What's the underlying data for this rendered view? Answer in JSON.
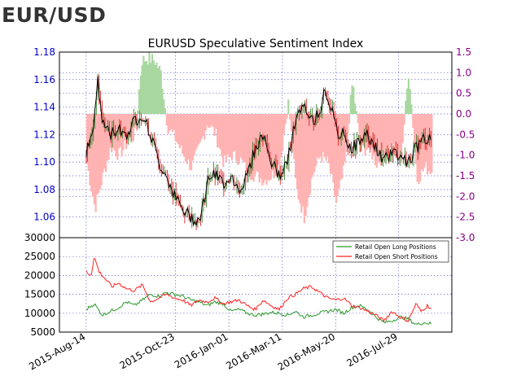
{
  "header": {
    "title": "EUR/USD"
  },
  "colors": {
    "price": "#000000",
    "long_candle_up": "#2a7a1a",
    "short_candle": "#d81010",
    "sentiment_positive": "#a8d8a0",
    "sentiment_negative": "#ffb3b3",
    "long_positions": "#2a9a2a",
    "short_positions": "#ff2020",
    "left_axis": "#0000cc",
    "right_axis": "#880088",
    "grid": "#6666cc"
  },
  "chart_data": [
    {
      "type": "line",
      "title": "EURUSD Speculative Sentiment Index",
      "x_tick_labels": [
        "2015-Aug-14",
        "2015-Oct-23",
        "2016-Jan-01",
        "2016-Mar-11",
        "2016-May-20",
        "2016-Jul-29"
      ],
      "left_axis": {
        "ylim": [
          1.045,
          1.18
        ],
        "ticks": [
          "1.18",
          "1.16",
          "1.14",
          "1.12",
          "1.10",
          "1.08",
          "1.06"
        ],
        "tick_values": [
          1.18,
          1.16,
          1.14,
          1.12,
          1.1,
          1.08,
          1.06
        ]
      },
      "right_axis": {
        "ylim": [
          -3.0,
          1.5
        ],
        "ticks": [
          "1.5",
          "1.0",
          "0.5",
          "0.0",
          "-0.5",
          "-1.0",
          "-1.5",
          "-2.0",
          "-2.5",
          "-3.0"
        ],
        "tick_values": [
          1.5,
          1.0,
          0.5,
          0.0,
          -0.5,
          -1.0,
          -1.5,
          -2.0,
          -2.5,
          -3.0
        ]
      },
      "grid": true,
      "price_keypoints": [
        [
          0,
          1.108
        ],
        [
          0.4,
          1.12
        ],
        [
          0.7,
          1.16
        ],
        [
          1.0,
          1.13
        ],
        [
          1.5,
          1.12
        ],
        [
          2.0,
          1.125
        ],
        [
          2.5,
          1.12
        ],
        [
          3.0,
          1.13
        ],
        [
          3.5,
          1.135
        ],
        [
          4.0,
          1.12
        ],
        [
          4.5,
          1.1
        ],
        [
          5.0,
          1.09
        ],
        [
          5.5,
          1.075
        ],
        [
          6.0,
          1.065
        ],
        [
          6.5,
          1.06
        ],
        [
          7.0,
          1.058
        ],
        [
          7.3,
          1.07
        ],
        [
          7.6,
          1.09
        ],
        [
          8.0,
          1.09
        ],
        [
          8.5,
          1.085
        ],
        [
          9.0,
          1.09
        ],
        [
          9.5,
          1.08
        ],
        [
          10.0,
          1.09
        ],
        [
          10.5,
          1.11
        ],
        [
          11.0,
          1.12
        ],
        [
          11.5,
          1.1
        ],
        [
          12.0,
          1.09
        ],
        [
          12.5,
          1.1
        ],
        [
          13.0,
          1.13
        ],
        [
          13.5,
          1.14
        ],
        [
          14.0,
          1.13
        ],
        [
          14.5,
          1.135
        ],
        [
          14.8,
          1.155
        ],
        [
          15.2,
          1.14
        ],
        [
          15.6,
          1.12
        ],
        [
          16.0,
          1.12
        ],
        [
          16.5,
          1.11
        ],
        [
          17.0,
          1.115
        ],
        [
          17.5,
          1.12
        ],
        [
          18.0,
          1.11
        ],
        [
          18.5,
          1.1
        ],
        [
          19.0,
          1.108
        ],
        [
          19.5,
          1.105
        ],
        [
          20.0,
          1.1
        ],
        [
          20.5,
          1.11
        ],
        [
          21.0,
          1.118
        ],
        [
          21.5,
          1.115
        ]
      ],
      "sentiment_keypoints": [
        [
          0,
          -1.2
        ],
        [
          0.5,
          -2.3
        ],
        [
          1.0,
          -1.5
        ],
        [
          1.5,
          -0.8
        ],
        [
          2.0,
          -1.0
        ],
        [
          2.5,
          -0.7
        ],
        [
          3.0,
          -0.5
        ],
        [
          3.4,
          1.3
        ],
        [
          3.8,
          1.35
        ],
        [
          4.2,
          1.3
        ],
        [
          4.6,
          1.0
        ],
        [
          5.0,
          -0.3
        ],
        [
          5.5,
          -0.6
        ],
        [
          6.0,
          -1.0
        ],
        [
          6.5,
          -1.3
        ],
        [
          7.0,
          -0.8
        ],
        [
          7.5,
          -0.2
        ],
        [
          8.0,
          -0.5
        ],
        [
          8.5,
          -1.2
        ],
        [
          9.0,
          -1.0
        ],
        [
          9.5,
          -1.1
        ],
        [
          10.0,
          -1.4
        ],
        [
          10.5,
          -1.5
        ],
        [
          11.0,
          -1.6
        ],
        [
          11.5,
          -1.5
        ],
        [
          12.0,
          -1.2
        ],
        [
          12.5,
          0.3
        ],
        [
          13.0,
          -1.8
        ],
        [
          13.5,
          -2.5
        ],
        [
          14.0,
          -1.5
        ],
        [
          14.5,
          -1.0
        ],
        [
          15.0,
          -1.2
        ],
        [
          15.5,
          -2.2
        ],
        [
          16.0,
          -1.3
        ],
        [
          16.5,
          0.8
        ],
        [
          17.0,
          -0.9
        ],
        [
          17.5,
          -0.8
        ],
        [
          18.0,
          -1.2
        ],
        [
          18.5,
          -1.0
        ],
        [
          19.0,
          -0.8
        ],
        [
          19.5,
          -1.2
        ],
        [
          20.0,
          1.1
        ],
        [
          20.5,
          -1.6
        ],
        [
          21.0,
          -1.3
        ],
        [
          21.5,
          -1.4
        ]
      ]
    },
    {
      "type": "line",
      "ylim": [
        5000,
        30000
      ],
      "y_ticks": [
        "30000",
        "25000",
        "20000",
        "15000",
        "10000",
        "5000"
      ],
      "y_tick_values": [
        30000,
        25000,
        20000,
        15000,
        10000,
        5000
      ],
      "legend_position": "top-right",
      "series": [
        {
          "name": "Retail Open Long Positions",
          "keypoints": [
            [
              0,
              11000
            ],
            [
              0.5,
              12500
            ],
            [
              1.0,
              9500
            ],
            [
              1.5,
              10500
            ],
            [
              2.0,
              11500
            ],
            [
              2.5,
              13000
            ],
            [
              3.0,
              12000
            ],
            [
              3.5,
              13500
            ],
            [
              4.0,
              15000
            ],
            [
              4.5,
              14500
            ],
            [
              5.0,
              15500
            ],
            [
              5.5,
              15000
            ],
            [
              6.0,
              14500
            ],
            [
              6.5,
              13500
            ],
            [
              7.0,
              13000
            ],
            [
              7.5,
              12000
            ],
            [
              8.0,
              13000
            ],
            [
              8.5,
              12500
            ],
            [
              9.0,
              10500
            ],
            [
              9.5,
              11000
            ],
            [
              10.0,
              10000
            ],
            [
              10.5,
              9500
            ],
            [
              11.0,
              9800
            ],
            [
              11.5,
              10200
            ],
            [
              12.0,
              10000
            ],
            [
              12.5,
              9500
            ],
            [
              13.0,
              10500
            ],
            [
              13.5,
              9000
            ],
            [
              14.0,
              9500
            ],
            [
              14.5,
              10000
            ],
            [
              15.0,
              10500
            ],
            [
              15.5,
              11000
            ],
            [
              16.0,
              10000
            ],
            [
              16.5,
              11500
            ],
            [
              17.0,
              12000
            ],
            [
              17.5,
              11000
            ],
            [
              18.0,
              9000
            ],
            [
              18.5,
              7500
            ],
            [
              19.0,
              8000
            ],
            [
              19.5,
              9000
            ],
            [
              20.0,
              8500
            ],
            [
              20.5,
              7000
            ],
            [
              21.0,
              7500
            ],
            [
              21.5,
              7200
            ]
          ]
        },
        {
          "name": "Retail Open Short Positions",
          "keypoints": [
            [
              0,
              21000
            ],
            [
              0.3,
              20000
            ],
            [
              0.5,
              25000
            ],
            [
              0.8,
              21000
            ],
            [
              1.2,
              19000
            ],
            [
              1.6,
              17000
            ],
            [
              2.0,
              18000
            ],
            [
              2.5,
              16500
            ],
            [
              3.0,
              16000
            ],
            [
              3.5,
              17500
            ],
            [
              4.0,
              13000
            ],
            [
              4.5,
              14000
            ],
            [
              5.0,
              15000
            ],
            [
              5.5,
              14000
            ],
            [
              6.0,
              13500
            ],
            [
              6.5,
              12000
            ],
            [
              7.0,
              13500
            ],
            [
              7.5,
              13000
            ],
            [
              8.0,
              14000
            ],
            [
              8.5,
              12500
            ],
            [
              9.0,
              13000
            ],
            [
              9.5,
              13500
            ],
            [
              10.0,
              12000
            ],
            [
              10.5,
              11000
            ],
            [
              11.0,
              13500
            ],
            [
              11.5,
              12000
            ],
            [
              12.0,
              11000
            ],
            [
              12.5,
              14000
            ],
            [
              13.0,
              15000
            ],
            [
              13.5,
              16500
            ],
            [
              14.0,
              17000
            ],
            [
              14.5,
              15500
            ],
            [
              15.0,
              14000
            ],
            [
              15.5,
              13500
            ],
            [
              16.0,
              14000
            ],
            [
              16.5,
              12000
            ],
            [
              17.0,
              11500
            ],
            [
              17.5,
              10500
            ],
            [
              18.0,
              9500
            ],
            [
              18.5,
              8000
            ],
            [
              19.0,
              10500
            ],
            [
              19.5,
              9000
            ],
            [
              20.0,
              8000
            ],
            [
              20.5,
              12500
            ],
            [
              20.8,
              10500
            ],
            [
              21.2,
              12000
            ],
            [
              21.5,
              11000
            ]
          ]
        }
      ]
    }
  ]
}
